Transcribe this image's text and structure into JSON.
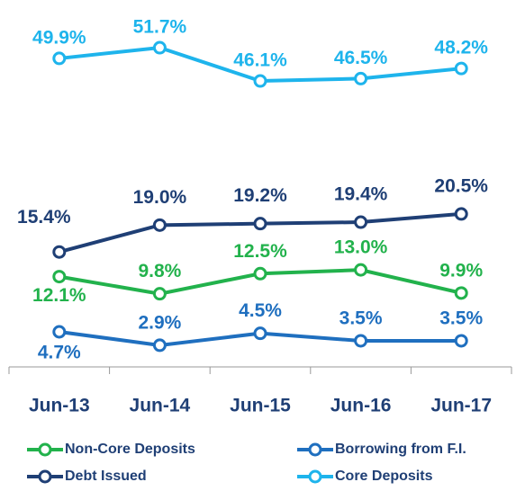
{
  "chart_data": {
    "type": "line",
    "categories": [
      "Jun-13",
      "Jun-14",
      "Jun-15",
      "Jun-16",
      "Jun-17"
    ],
    "series": [
      {
        "name": "Non-Core Deposits",
        "color": "#22b24c",
        "values": [
          12.1,
          9.8,
          12.5,
          13.0,
          9.9
        ],
        "value_labels": [
          "12.1%",
          "9.8%",
          "12.5%",
          "13.0%",
          "9.9%"
        ]
      },
      {
        "name": "Borrowing from F.I.",
        "color": "#1f6fbf",
        "values": [
          4.7,
          2.9,
          4.5,
          3.5,
          3.5
        ],
        "value_labels": [
          "4.7%",
          "2.9%",
          "4.5%",
          "3.5%",
          "3.5%"
        ]
      },
      {
        "name": "Debt Issued",
        "color": "#1f3f75",
        "values": [
          15.4,
          19.0,
          19.2,
          19.4,
          20.5
        ],
        "value_labels": [
          "15.4%",
          "19.0%",
          "19.2%",
          "19.4%",
          "20.5%"
        ]
      },
      {
        "name": "Core Deposits",
        "color": "#1eb4ec",
        "axis": "y2",
        "values": [
          49.9,
          51.7,
          46.1,
          46.5,
          48.2
        ],
        "value_labels": [
          "49.9%",
          "51.7%",
          "46.1%",
          "46.5%",
          "48.2%"
        ]
      }
    ],
    "ylim": [
      0,
      47
    ],
    "y2lim": [
      -2,
      57
    ],
    "legend": "bottom"
  }
}
